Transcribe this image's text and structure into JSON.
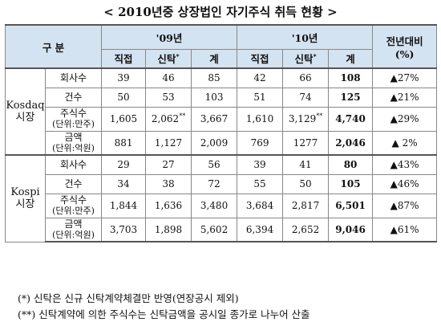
{
  "title": "< 2010년중 상장법인 자기주식 취득 현황 >",
  "header": {
    "category": "구 분",
    "year09": "'09년",
    "year10": "'10년",
    "yoy_line1": "전년대비",
    "yoy_line2": "(%)",
    "direct": "직접",
    "trust": "신탁",
    "trust_mark": "*",
    "total": "계"
  },
  "groups": [
    {
      "name_line1": "Kosdaq",
      "name_line2": "시장",
      "rows": [
        {
          "label": "회사수",
          "unit": "",
          "d09": "39",
          "t09": "46",
          "t09_mark": "",
          "s09": "85",
          "d10": "42",
          "t10": "66",
          "t10_mark": "",
          "s10": "108",
          "yoy": "▲27%"
        },
        {
          "label": "건수",
          "unit": "",
          "d09": "50",
          "t09": "53",
          "t09_mark": "",
          "s09": "103",
          "d10": "51",
          "t10": "74",
          "t10_mark": "",
          "s10": "125",
          "yoy": "▲21%"
        },
        {
          "label": "주식수",
          "unit": "(단위:만주)",
          "d09": "1,605",
          "t09": "2,062",
          "t09_mark": "**",
          "s09": "3,667",
          "d10": "1,610",
          "t10": "3,129",
          "t10_mark": "**",
          "s10": "4,740",
          "yoy": "▲29%"
        },
        {
          "label": "금액",
          "unit": "(단위:억원)",
          "d09": "881",
          "t09": "1,127",
          "t09_mark": "",
          "s09": "2,009",
          "d10": "769",
          "t10": "1277",
          "t10_mark": "",
          "s10": "2,046",
          "yoy": "▲ 2%"
        }
      ]
    },
    {
      "name_line1": "Kospi",
      "name_line2": "시장",
      "rows": [
        {
          "label": "회사수",
          "unit": "",
          "d09": "29",
          "t09": "27",
          "t09_mark": "",
          "s09": "56",
          "d10": "39",
          "t10": "41",
          "t10_mark": "",
          "s10": "80",
          "yoy": "▲43%"
        },
        {
          "label": "건수",
          "unit": "",
          "d09": "34",
          "t09": "38",
          "t09_mark": "",
          "s09": "72",
          "d10": "55",
          "t10": "50",
          "t10_mark": "",
          "s10": "105",
          "yoy": "▲46%"
        },
        {
          "label": "주식수",
          "unit": "(단위:만주)",
          "d09": "1,844",
          "t09": "1,636",
          "t09_mark": "",
          "s09": "3,480",
          "d10": "3,684",
          "t10": "2,817",
          "t10_mark": "",
          "s10": "6,501",
          "yoy": "▲87%"
        },
        {
          "label": "금액",
          "unit": "(단위:억원)",
          "d09": "3,703",
          "t09": "1,898",
          "t09_mark": "",
          "s09": "5,602",
          "d10": "6,394",
          "t10": "2,652",
          "t10_mark": "",
          "s10": "9,046",
          "yoy": "▲61%"
        }
      ]
    }
  ],
  "notes": [
    "(*) 신탁은 신규 신탁계약체결만 반영(연장공시 제외)",
    "(**) 신탁계약에 의한 주식수는 신탁금액을 공시일 종가로 나누어 산출"
  ],
  "colors": {
    "header_bg": "#d4e3f1",
    "border": "#888888"
  }
}
